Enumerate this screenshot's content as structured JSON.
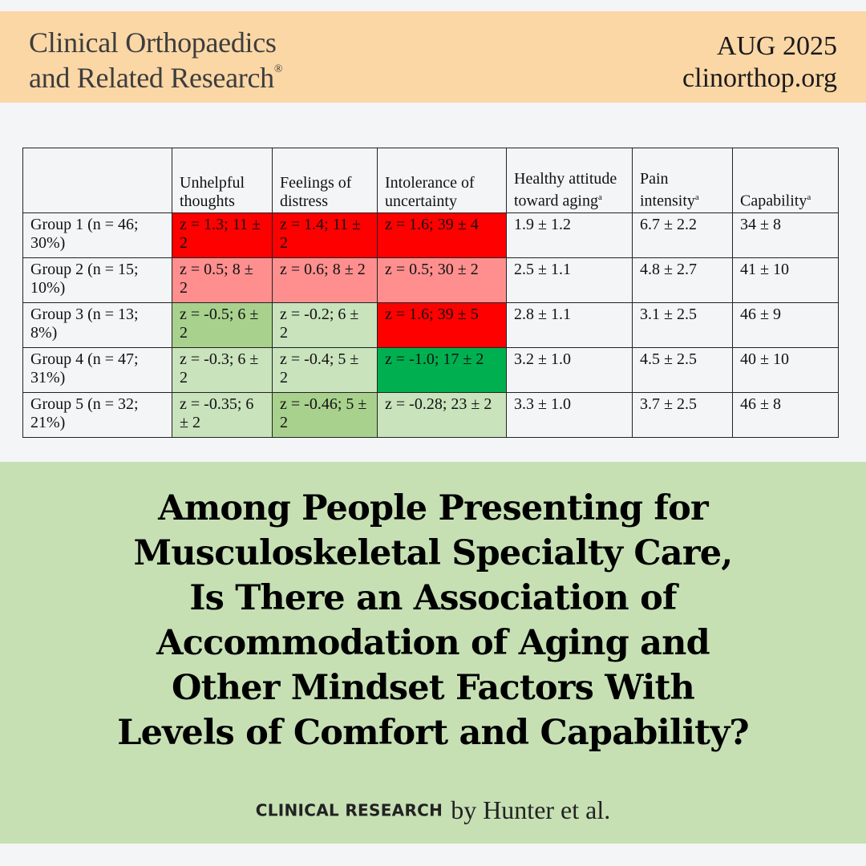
{
  "header": {
    "journal_line1": "Clinical Orthopaedics",
    "journal_line2": "and Related Research",
    "registered_mark": "®",
    "issue_date": "AUG 2025",
    "website": "clinorthop.org"
  },
  "table": {
    "columns": [
      {
        "label": "",
        "sup": ""
      },
      {
        "label": "Unhelpful thoughts",
        "sup": ""
      },
      {
        "label": "Feelings of distress",
        "sup": ""
      },
      {
        "label": "Intolerance of uncertainty",
        "sup": ""
      },
      {
        "label": "Healthy attitude toward aging",
        "sup": "a"
      },
      {
        "label": "Pain intensity",
        "sup": "a"
      },
      {
        "label": "Capability",
        "sup": "a"
      }
    ],
    "rows": [
      {
        "group": "Group 1 (n = 46; 30%)",
        "unhelpful": "z = 1.3; 11 ± 2",
        "distress": "z = 1.4; 11 ± 2",
        "uncertainty": "z = 1.6; 39 ± 4",
        "aging": "1.9 ± 1.2",
        "pain": "6.7 ± 2.2",
        "capability": "34 ± 8"
      },
      {
        "group": "Group 2 (n = 15; 10%)",
        "unhelpful": "z = 0.5; 8 ± 2",
        "distress": "z = 0.6; 8 ± 2",
        "uncertainty": "z = 0.5; 30 ± 2",
        "aging": "2.5 ± 1.1",
        "pain": "4.8 ± 2.7",
        "capability": "41 ± 10"
      },
      {
        "group": "Group 3 (n = 13; 8%)",
        "unhelpful": "z = -0.5; 6 ± 2",
        "distress": "z = -0.2; 6 ± 2",
        "uncertainty": "z = 1.6; 39 ± 5",
        "aging": "2.8 ± 1.1",
        "pain": "3.1 ± 2.5",
        "capability": "46 ± 9"
      },
      {
        "group": "Group 4 (n = 47; 31%)",
        "unhelpful": "z = -0.3; 6 ± 2",
        "distress": "z = -0.4; 5 ± 2",
        "uncertainty": "z = -1.0; 17 ± 2",
        "aging": "3.2 ± 1.0",
        "pain": "4.5 ± 2.5",
        "capability": "40 ± 10"
      },
      {
        "group": "Group 5 (n = 32; 21%)",
        "unhelpful": "z = -0.35; 6 ± 2",
        "distress": "z = -0.46; 5 ± 2",
        "uncertainty": "z = -0.28; 23 ± 2",
        "aging": "3.3 ± 1.0",
        "pain": "3.7 ± 2.5",
        "capability": "46 ± 8"
      }
    ],
    "cell_colors": {
      "red": "#ff0000",
      "pink": "#ff8f8f",
      "light_green": "#c9e3bd",
      "medium_green": "#a9d18e",
      "dark_green": "#00b050"
    }
  },
  "headline": {
    "lines": [
      "Among People Presenting for",
      "Musculoskeletal Specialty Care,",
      "Is There an Association of",
      "Accommodation of Aging and",
      "Other Mindset Factors With",
      "Levels of Comfort and Capability?"
    ],
    "kicker": "CLINICAL RESEARCH",
    "byline": "by Hunter et al."
  },
  "colors": {
    "header_bg": "#fbd7a6",
    "page_bg": "#f4f5f7",
    "banner_bg": "#c6e0b4"
  }
}
